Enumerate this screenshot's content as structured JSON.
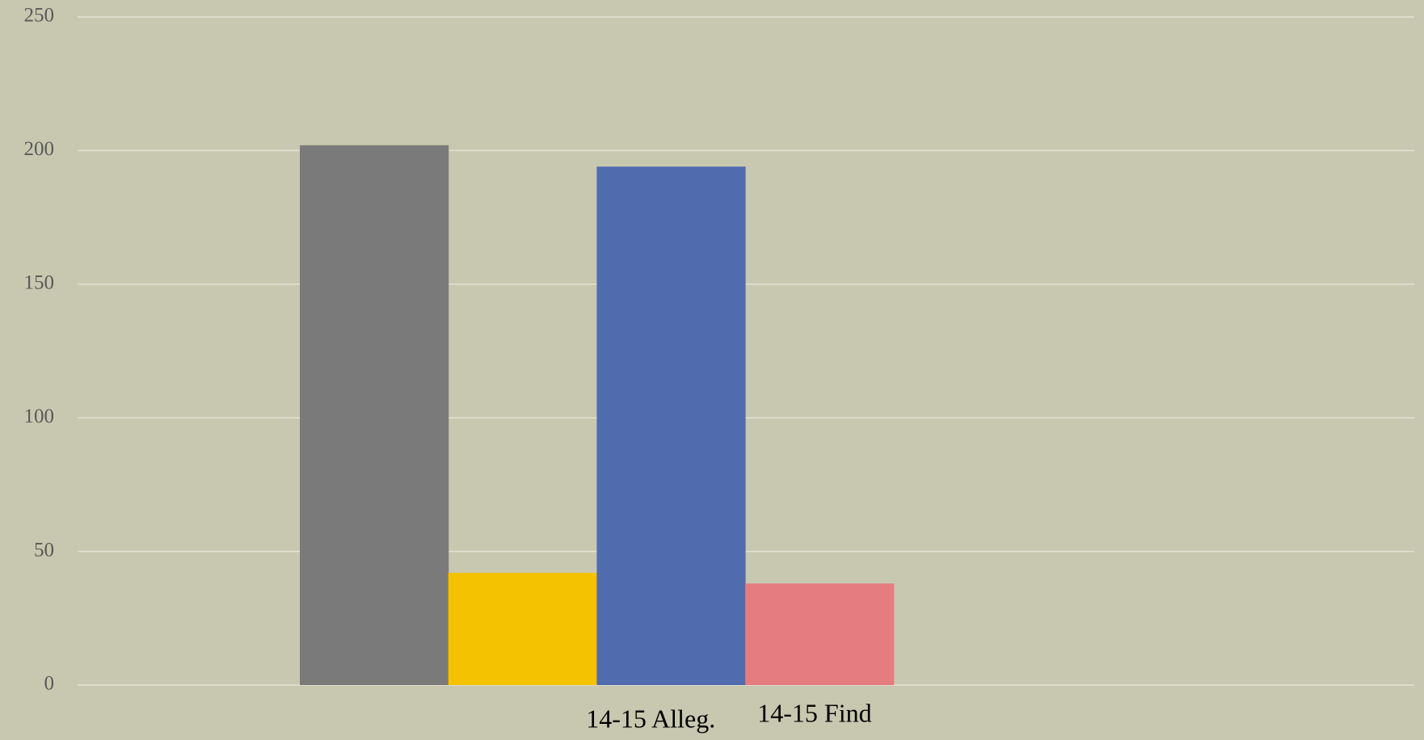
{
  "chart_data": {
    "type": "bar",
    "categories": [
      null,
      null,
      "14-15 Alleg.",
      "14-15 Find"
    ],
    "values": [
      202,
      42,
      194,
      38
    ],
    "colors": [
      "#7a7a7a",
      "#f5c200",
      "#516cae",
      "#e57c80"
    ],
    "ylim": [
      0,
      250
    ],
    "yticks": [
      0,
      50,
      100,
      150,
      200,
      250
    ],
    "grid": true
  }
}
